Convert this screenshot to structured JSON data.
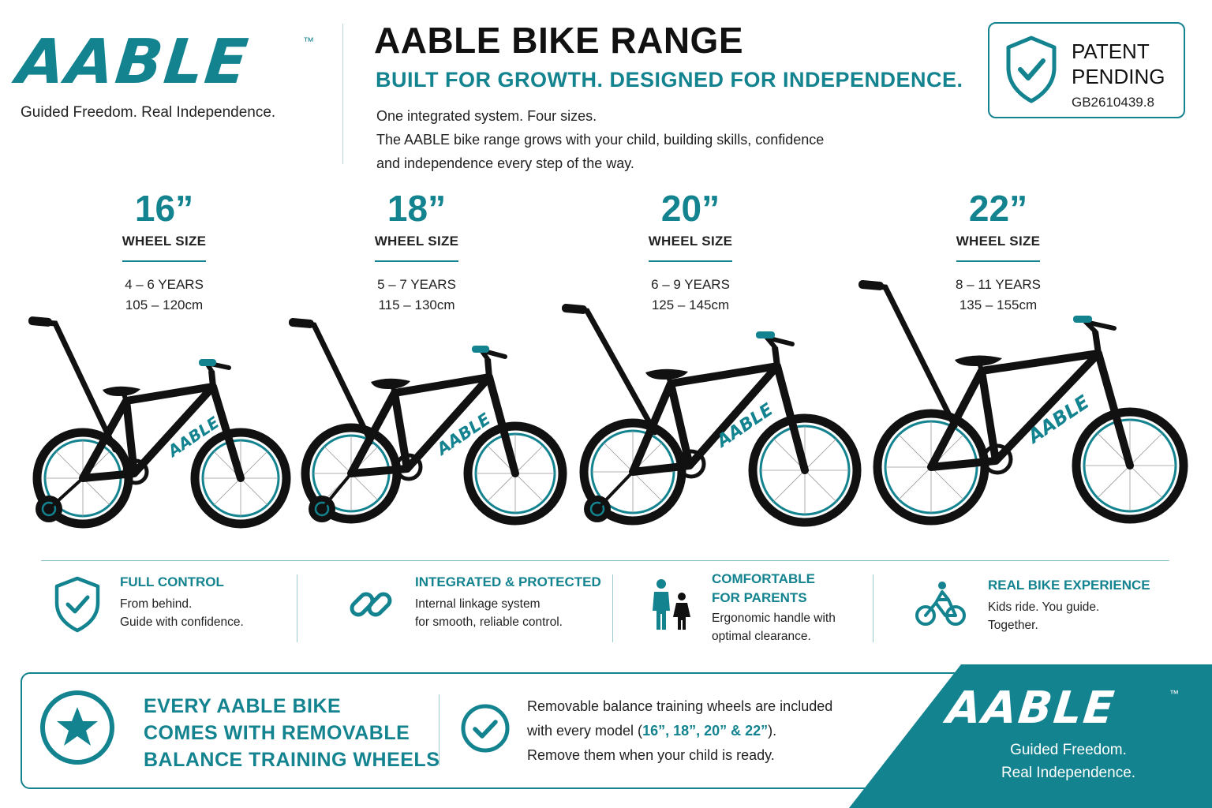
{
  "brand": {
    "logo": "AABLE",
    "tm": "™",
    "tagline": "Guided Freedom. Real Independence.",
    "tagline_line1": "Guided Freedom.",
    "tagline_line2": "Real Independence."
  },
  "header": {
    "title": "AABLE BIKE RANGE",
    "subtitle": "BUILT FOR GROWTH. DESIGNED FOR INDEPENDENCE.",
    "desc_line1": "One integrated system. Four sizes.",
    "desc_line2": "The AABLE bike range grows with your child, building skills, confidence",
    "desc_line3": "and independence every step of the way."
  },
  "patent": {
    "line1": "PATENT",
    "line2": "PENDING",
    "number": "GB2610439.8"
  },
  "sizes": [
    {
      "size": "16”",
      "label": "WHEEL SIZE",
      "age": "4 – 6 YEARS",
      "height": "105 – 120cm"
    },
    {
      "size": "18”",
      "label": "WHEEL SIZE",
      "age": "5 – 7 YEARS",
      "height": "115 – 130cm"
    },
    {
      "size": "20”",
      "label": "WHEEL SIZE",
      "age": "6 – 9 YEARS",
      "height": "125 – 145cm"
    },
    {
      "size": "22”",
      "label": "WHEEL SIZE",
      "age": "8 – 11 YEARS",
      "height": "135 – 155cm"
    }
  ],
  "bike_frame_text": "AABLE",
  "features": [
    {
      "title": "FULL CONTROL",
      "line1": "From behind.",
      "line2": "Guide with confidence.",
      "icon": "shield-check-icon"
    },
    {
      "title": "INTEGRATED & PROTECTED",
      "line1": "Internal linkage system",
      "line2": "for smooth, reliable control.",
      "icon": "chain-link-icon"
    },
    {
      "title_line1": "COMFORTABLE",
      "title_line2": "FOR PARENTS",
      "line1": "Ergonomic handle with",
      "line2": "optimal clearance.",
      "icon": "parent-child-icon"
    },
    {
      "title": "REAL BIKE EXPERIENCE",
      "line1": "Kids ride.  You guide.",
      "line2": "Together.",
      "icon": "cyclist-icon"
    }
  ],
  "bottom": {
    "head_line1": "EVERY AABLE BIKE",
    "head_line2": "COMES WITH REMOVABLE",
    "head_line3": "BALANCE TRAINING WHEELS",
    "text_line1": "Removable balance training wheels are included",
    "text_line2_pre": "with every model (",
    "text_line2_em": "16”, 18”, 20” & 22”",
    "text_line2_post": ").",
    "text_line3": "Remove them when your child is ready."
  },
  "colors": {
    "accent": "#13838f",
    "text": "#1a1a1a",
    "bike": "#111111"
  }
}
